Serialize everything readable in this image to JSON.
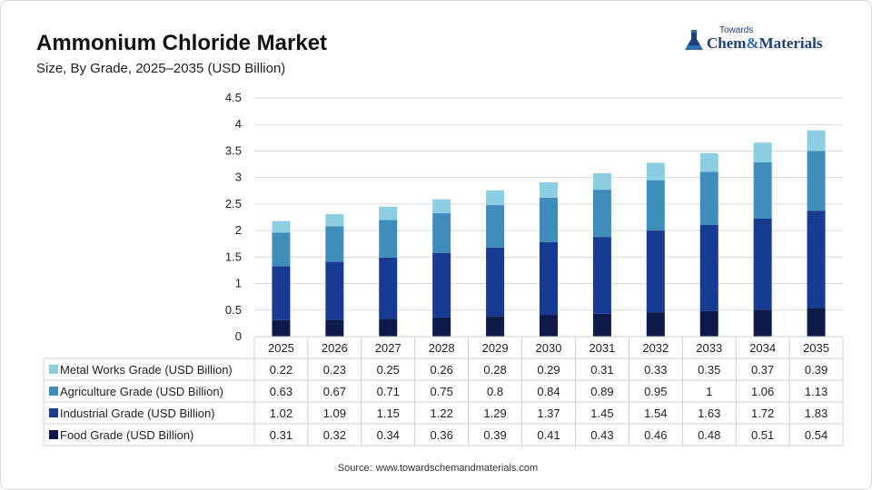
{
  "header": {
    "title": "Ammonium Chloride Market",
    "subtitle": "Size, By Grade, 2025–2035 (USD Billion)"
  },
  "logo": {
    "top": "Towards",
    "main_left": "Chem",
    "main_amp": "&",
    "main_right": "Materials"
  },
  "source": {
    "label": "Source:",
    "value": "www.towardschemandmaterials.com"
  },
  "chart_data": {
    "type": "bar",
    "stacked": true,
    "categories": [
      "2025",
      "2026",
      "2027",
      "2028",
      "2029",
      "2030",
      "2031",
      "2032",
      "2033",
      "2034",
      "2035"
    ],
    "y_ticks": [
      "0",
      "0.5",
      "1",
      "1.5",
      "2",
      "2.5",
      "3",
      "3.5",
      "4",
      "4.5"
    ],
    "ylim": [
      0,
      4.5
    ],
    "grid": true,
    "legend": "data-table-below",
    "series": [
      {
        "name": "Food Grade (USD Billion)",
        "color": "#0d1a4a",
        "values": [
          "0.31",
          "0.32",
          "0.34",
          "0.36",
          "0.39",
          "0.41",
          "0.43",
          "0.46",
          "0.48",
          "0.51",
          "0.54"
        ]
      },
      {
        "name": "Industrial Grade (USD Billion)",
        "color": "#173a93",
        "values": [
          "1.02",
          "1.09",
          "1.15",
          "1.22",
          "1.29",
          "1.37",
          "1.45",
          "1.54",
          "1.63",
          "1.72",
          "1.83"
        ]
      },
      {
        "name": "Agriculture Grade (USD Billion)",
        "color": "#3f8dba",
        "values": [
          "0.63",
          "0.67",
          "0.71",
          "0.75",
          "0.8",
          "0.84",
          "0.89",
          "0.95",
          "1",
          "1.06",
          "1.13"
        ]
      },
      {
        "name": "Metal Works Grade (USD Billion)",
        "color": "#8ccfe3",
        "values": [
          "0.22",
          "0.23",
          "0.25",
          "0.26",
          "0.28",
          "0.29",
          "0.31",
          "0.33",
          "0.35",
          "0.37",
          "0.39"
        ]
      }
    ],
    "table_order": [
      3,
      2,
      1,
      0
    ]
  }
}
